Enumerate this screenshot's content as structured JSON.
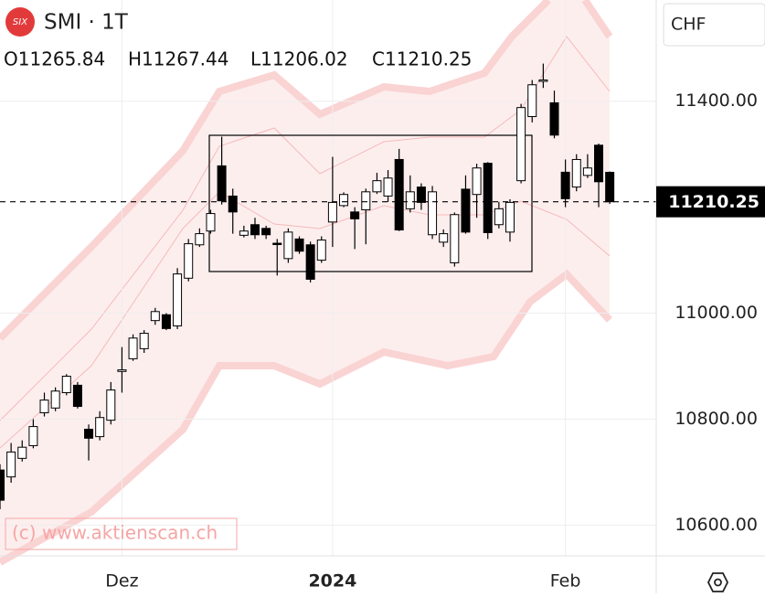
{
  "chart_data": {
    "type": "candlestick",
    "title": "SMI · 1T",
    "logo": "SIX",
    "currency": "CHF",
    "legend_values": [
      "O11265.84",
      "H11267.44",
      "L11206.02",
      "C11210.25"
    ],
    "watermark": "(c) www.aktienscan.ch",
    "categories": [
      null,
      null,
      null,
      null,
      null,
      null,
      null,
      null,
      null,
      null,
      null,
      "Dez",
      null,
      null,
      null,
      null,
      null,
      null,
      null,
      null,
      null,
      null,
      null,
      null,
      null,
      null,
      null,
      null,
      null,
      null,
      "2024",
      null,
      null,
      null,
      null,
      null,
      null,
      null,
      null,
      null,
      null,
      null,
      null,
      null,
      null,
      null,
      null,
      null,
      null,
      null,
      null,
      "Feb",
      null,
      null,
      null,
      null
    ],
    "open": [
      10704,
      10691,
      10726,
      10750,
      10812,
      10821,
      10850,
      10864,
      10781,
      10767,
      10798,
      10890,
      10914,
      10933,
      10986,
      10997,
      10976,
      11066,
      11129,
      11155,
      11278,
      11221,
      11147,
      11167,
      11160,
      11132,
      11103,
      11140,
      11129,
      11100,
      11172,
      11203,
      11191,
      11195,
      11229,
      11221,
      11290,
      11197,
      11238,
      11148,
      11134,
      11095,
      11234,
      11224,
      11283,
      11167,
      11153,
      11250,
      11371,
      11438,
      11397,
      11266,
      11238,
      11260,
      11317,
      11265.84
    ],
    "high": [
      10715,
      10755,
      10760,
      10800,
      10850,
      10860,
      10885,
      10870,
      10790,
      10815,
      10870,
      10936,
      10960,
      10968,
      11010,
      11000,
      11085,
      11140,
      11160,
      11195,
      11333,
      11235,
      11165,
      11180,
      11165,
      11140,
      11160,
      11145,
      11135,
      11145,
      11295,
      11228,
      11200,
      11235,
      11265,
      11270,
      11310,
      11260,
      11245,
      11240,
      11158,
      11190,
      11260,
      11282,
      11285,
      11210,
      11215,
      11395,
      11440,
      11471,
      11420,
      11290,
      11300,
      11300,
      11320,
      11267.44
    ],
    "low": [
      10630,
      10680,
      10720,
      10745,
      10805,
      10815,
      10845,
      10820,
      10722,
      10760,
      10790,
      10850,
      10910,
      10925,
      10978,
      10968,
      10970,
      11060,
      11125,
      11150,
      11205,
      11150,
      11143,
      11140,
      11140,
      11071,
      11095,
      11112,
      11058,
      11095,
      11125,
      11200,
      11121,
      11130,
      11225,
      11210,
      11155,
      11190,
      11195,
      11140,
      11125,
      11088,
      11150,
      11180,
      11140,
      11160,
      11135,
      11245,
      11360,
      11425,
      11330,
      11200,
      11230,
      11255,
      11200,
      11206.02
    ],
    "close": [
      10647,
      10738,
      10747,
      10786,
      10836,
      10853,
      10881,
      10824,
      10764,
      10803,
      10855,
      10893,
      10953,
      10962,
      11003,
      10971,
      11074,
      11131,
      11150,
      11188,
      11212,
      11191,
      11155,
      11148,
      11148,
      11130,
      11153,
      11117,
      11064,
      11138,
      11209,
      11224,
      11178,
      11229,
      11250,
      11255,
      11157,
      11229,
      11209,
      11229,
      11150,
      11186,
      11153,
      11274,
      11152,
      11197,
      11209,
      11388,
      11431,
      11440,
      11336,
      11216,
      11290,
      11274,
      11248,
      11210.25
    ],
    "up_color": "#ffffff",
    "down_color": "#000000",
    "band_color": "#f9c9c9",
    "last_price": 11210.25,
    "ylim": [
      10542,
      11591
    ],
    "yticks": [
      {
        "value": 10600,
        "label": "10600.00"
      },
      {
        "value": 10800,
        "label": "10800.00"
      },
      {
        "value": 11000,
        "label": "11000.00"
      },
      {
        "value": 11400,
        "label": "11400.00"
      }
    ],
    "grid": true
  }
}
